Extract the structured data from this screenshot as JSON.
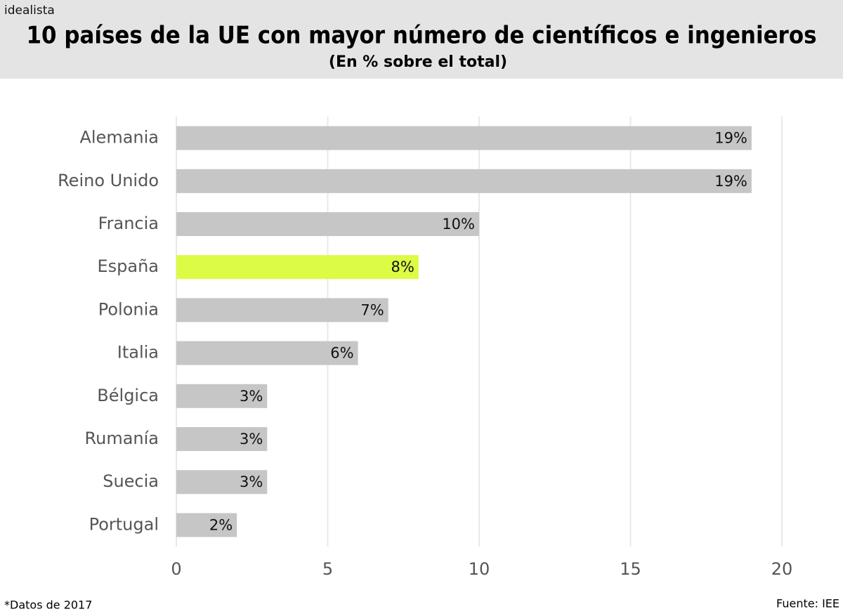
{
  "chart_data": {
    "type": "barh",
    "brand": "idealista",
    "title": "10 países de la UE con mayor número de científicos e ingenieros",
    "subtitle": "(En % sobre el total)",
    "categories": [
      "Alemania",
      "Reino Unido",
      "Francia",
      "España",
      "Polonia",
      "Italia",
      "Bélgica",
      "Rumanía",
      "Suecia",
      "Portugal"
    ],
    "values": [
      19,
      19,
      10,
      8,
      7,
      6,
      3,
      3,
      3,
      2
    ],
    "value_labels": [
      "19%",
      "19%",
      "10%",
      "8%",
      "7%",
      "6%",
      "3%",
      "3%",
      "3%",
      "2%"
    ],
    "colors": [
      "#c6c6c6",
      "#c6c6c6",
      "#c6c6c6",
      "#dcfb45",
      "#c6c6c6",
      "#c6c6c6",
      "#c6c6c6",
      "#c6c6c6",
      "#c6c6c6",
      "#c6c6c6"
    ],
    "xlim": [
      0,
      20
    ],
    "xticks": [
      0,
      5,
      10,
      15,
      20
    ],
    "grid": true,
    "note": "*Datos de 2017",
    "source": "Fuente: IEE"
  }
}
